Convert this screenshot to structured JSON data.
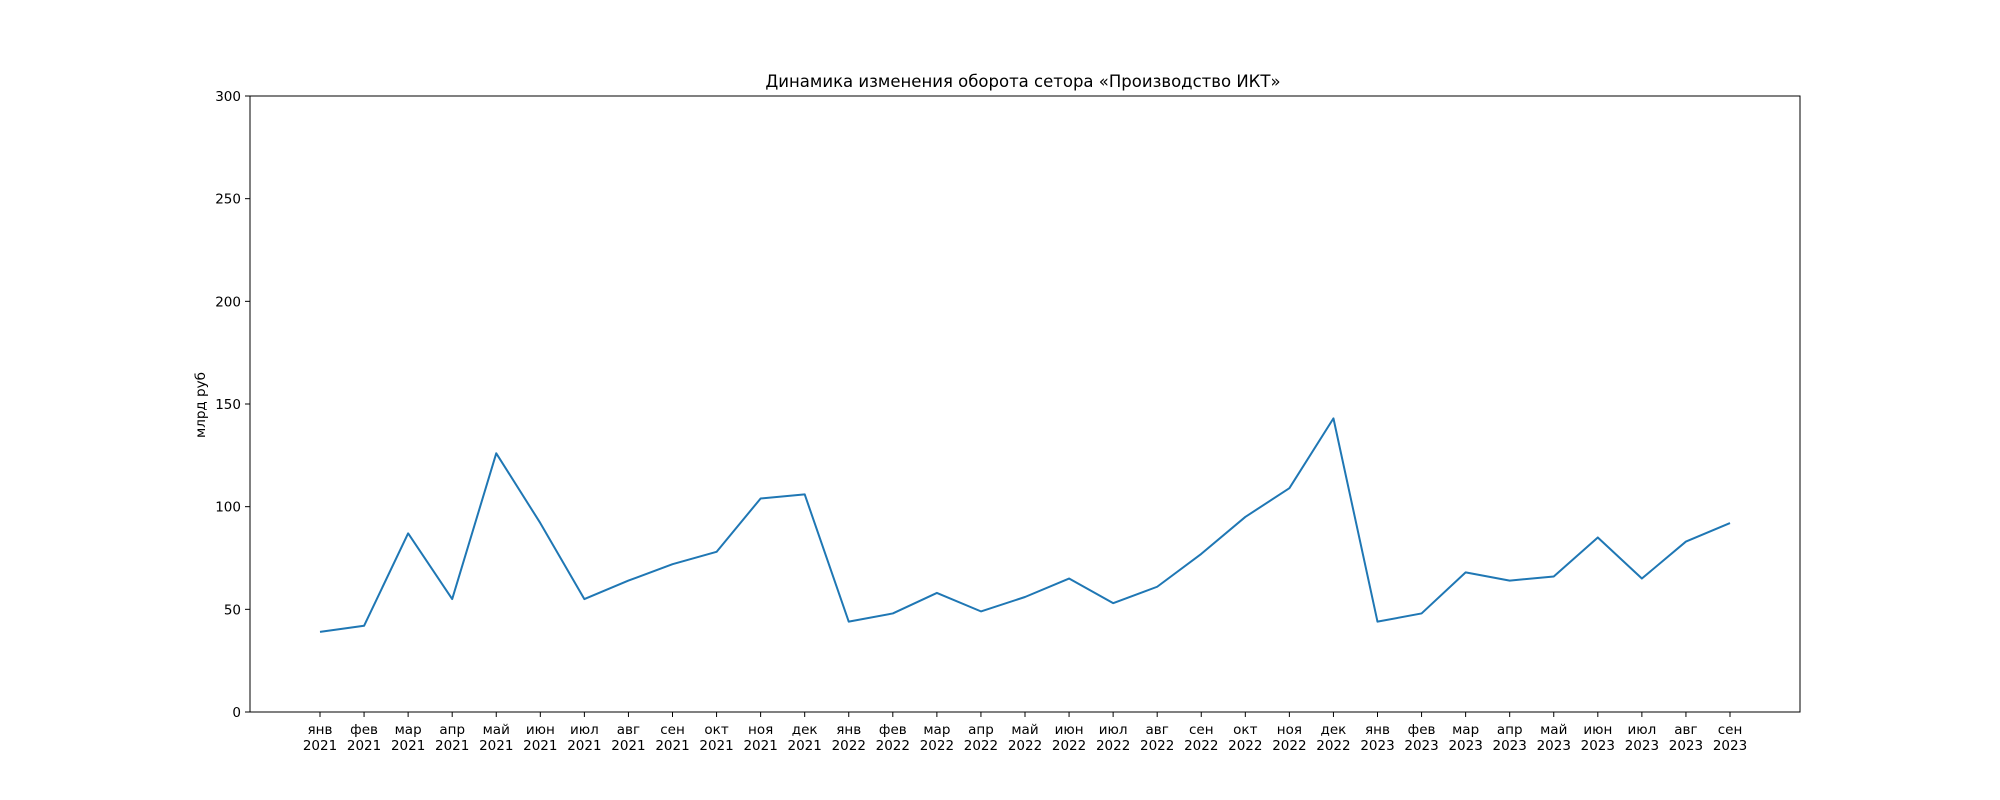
{
  "chart_data": {
    "type": "line",
    "title": "Динамика изменения оборота сетора «Производство ИКТ»",
    "xlabel": "",
    "ylabel": "млрд руб",
    "ylim": [
      0,
      300
    ],
    "yticks": [
      "0",
      "50",
      "100",
      "150",
      "200",
      "250",
      "300"
    ],
    "grid": false,
    "legend": "none",
    "line_color": "#1f77b4",
    "categories": [
      [
        "янв",
        "2021"
      ],
      [
        "фев",
        "2021"
      ],
      [
        "мар",
        "2021"
      ],
      [
        "апр",
        "2021"
      ],
      [
        "май",
        "2021"
      ],
      [
        "июн",
        "2021"
      ],
      [
        "июл",
        "2021"
      ],
      [
        "авг",
        "2021"
      ],
      [
        "сен",
        "2021"
      ],
      [
        "окт",
        "2021"
      ],
      [
        "ноя",
        "2021"
      ],
      [
        "дек",
        "2021"
      ],
      [
        "янв",
        "2022"
      ],
      [
        "фев",
        "2022"
      ],
      [
        "мар",
        "2022"
      ],
      [
        "апр",
        "2022"
      ],
      [
        "май",
        "2022"
      ],
      [
        "июн",
        "2022"
      ],
      [
        "июл",
        "2022"
      ],
      [
        "авг",
        "2022"
      ],
      [
        "сен",
        "2022"
      ],
      [
        "окт",
        "2022"
      ],
      [
        "ноя",
        "2022"
      ],
      [
        "дек",
        "2022"
      ],
      [
        "янв",
        "2023"
      ],
      [
        "фев",
        "2023"
      ],
      [
        "мар",
        "2023"
      ],
      [
        "апр",
        "2023"
      ],
      [
        "май",
        "2023"
      ],
      [
        "июн",
        "2023"
      ],
      [
        "июл",
        "2023"
      ],
      [
        "авг",
        "2023"
      ],
      [
        "сен",
        "2023"
      ]
    ],
    "values": [
      39,
      42,
      87,
      55,
      126,
      92,
      55,
      64,
      72,
      78,
      104,
      106,
      44,
      48,
      58,
      49,
      56,
      65,
      53,
      61,
      77,
      95,
      109,
      143,
      44,
      48,
      68,
      64,
      66,
      85,
      65,
      83,
      92
    ]
  }
}
